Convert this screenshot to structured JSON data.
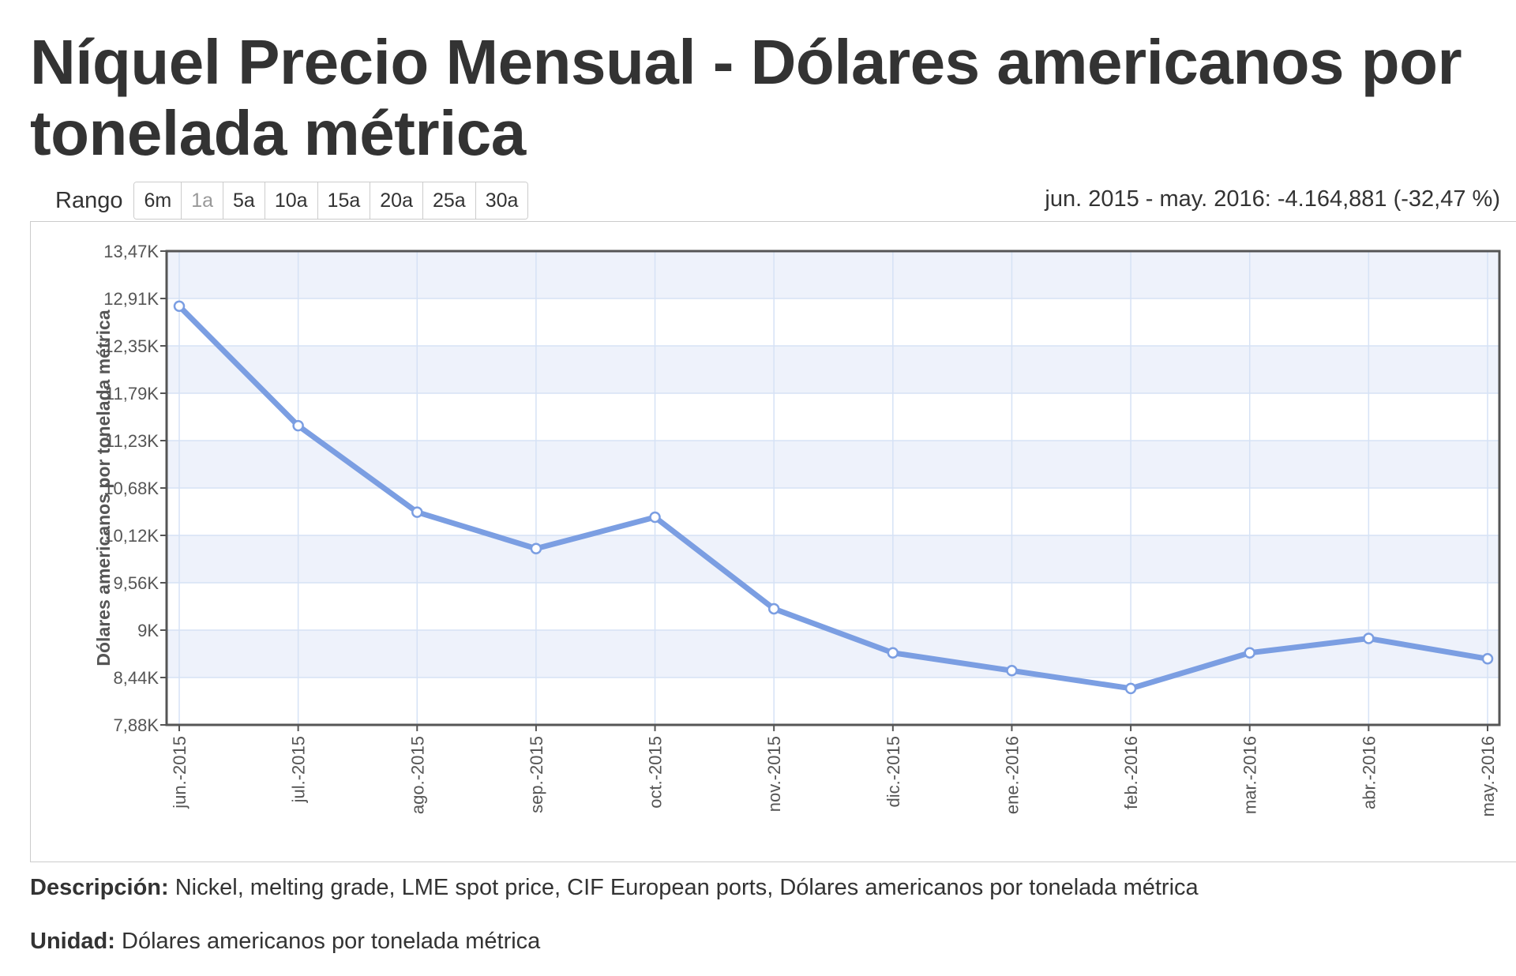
{
  "title": "Níquel Precio Mensual - Dólares americanos por tonelada métrica",
  "range": {
    "label": "Rango",
    "buttons": [
      "6m",
      "1a",
      "5a",
      "10a",
      "15a",
      "20a",
      "25a",
      "30a"
    ],
    "active": "1a"
  },
  "change_summary": "jun. 2015 - may. 2016: -4.164,881 (-32,47 %)",
  "description": {
    "label": "Descripción:",
    "text": "Nickel, melting grade, LME spot price, CIF European ports, Dólares americanos por tonelada métrica"
  },
  "unit": {
    "label": "Unidad:",
    "text": "Dólares americanos por tonelada métrica"
  },
  "colors": {
    "line": "#7b9ee2",
    "band": "#eef2fb",
    "grid": "#d6e2f5",
    "frame": "#555555"
  },
  "chart_data": {
    "type": "line",
    "title": "",
    "xlabel": "",
    "ylabel": "Dólares americanos por tonelada métrica",
    "categories": [
      "jun.-2015",
      "jul.-2015",
      "ago.-2015",
      "sep.-2015",
      "oct.-2015",
      "nov.-2015",
      "dic.-2015",
      "ene.-2016",
      "feb.-2016",
      "mar.-2016",
      "abr.-2016",
      "may.-2016"
    ],
    "ytick_labels": [
      "7,88K",
      "8,44K",
      "9K",
      "9,56K",
      "10,12K",
      "10,68K",
      "11,23K",
      "11,79K",
      "12,35K",
      "12,91K",
      "13,47K"
    ],
    "ylim": [
      7880,
      13470
    ],
    "grid": true,
    "series": [
      {
        "name": "",
        "values": [
          12820,
          11410,
          10390,
          9960,
          10330,
          9250,
          8730,
          8520,
          8310,
          8730,
          8900,
          8660
        ]
      }
    ]
  }
}
